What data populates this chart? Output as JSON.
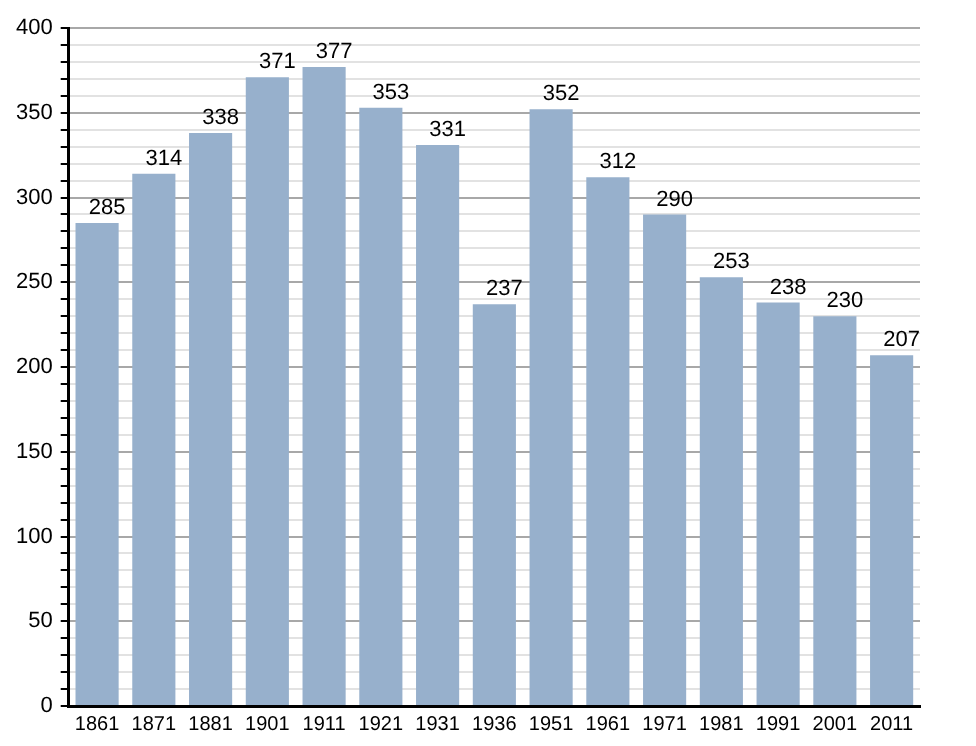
{
  "chart_data": {
    "type": "bar",
    "categories": [
      "1861",
      "1871",
      "1881",
      "1901",
      "1911",
      "1921",
      "1931",
      "1936",
      "1951",
      "1961",
      "1971",
      "1981",
      "1991",
      "2001",
      "2011"
    ],
    "values": [
      285,
      314,
      338,
      371,
      377,
      353,
      331,
      237,
      352,
      312,
      290,
      253,
      238,
      230,
      207
    ],
    "color": "#97b0cc",
    "data_labels": true,
    "ylim": [
      0,
      400
    ],
    "yticks": [
      0,
      {
        "value": 10,
        "label": null
      },
      {
        "value": 20,
        "label": null
      },
      {
        "value": 30,
        "label": null
      },
      {
        "value": 40,
        "label": null
      },
      50,
      {
        "value": 60,
        "label": null
      },
      {
        "value": 70,
        "label": null
      },
      {
        "value": 80,
        "label": null
      },
      {
        "value": 90,
        "label": null
      },
      100,
      {
        "value": 110,
        "label": null
      },
      {
        "value": 120,
        "label": null
      },
      {
        "value": 130,
        "label": null
      },
      {
        "value": 140,
        "label": null
      },
      150,
      {
        "value": 160,
        "label": null
      },
      {
        "value": 170,
        "label": null
      },
      {
        "value": 180,
        "label": null
      },
      {
        "value": 190,
        "label": null
      },
      200,
      {
        "value": 210,
        "label": null
      },
      {
        "value": 220,
        "label": null
      },
      {
        "value": 230,
        "label": null
      },
      {
        "value": 240,
        "label": null
      },
      250,
      {
        "value": 260,
        "label": null
      },
      {
        "value": 270,
        "label": null
      },
      {
        "value": 280,
        "label": null
      },
      {
        "value": 290,
        "label": null
      },
      300,
      {
        "value": 310,
        "label": null
      },
      {
        "value": 320,
        "label": null
      },
      {
        "value": 330,
        "label": null
      },
      {
        "value": 340,
        "label": null
      },
      350,
      {
        "value": 360,
        "label": null
      },
      {
        "value": 370,
        "label": null
      },
      {
        "value": 380,
        "label": null
      },
      {
        "value": 390,
        "label": null
      },
      400
    ],
    "grid": true
  }
}
